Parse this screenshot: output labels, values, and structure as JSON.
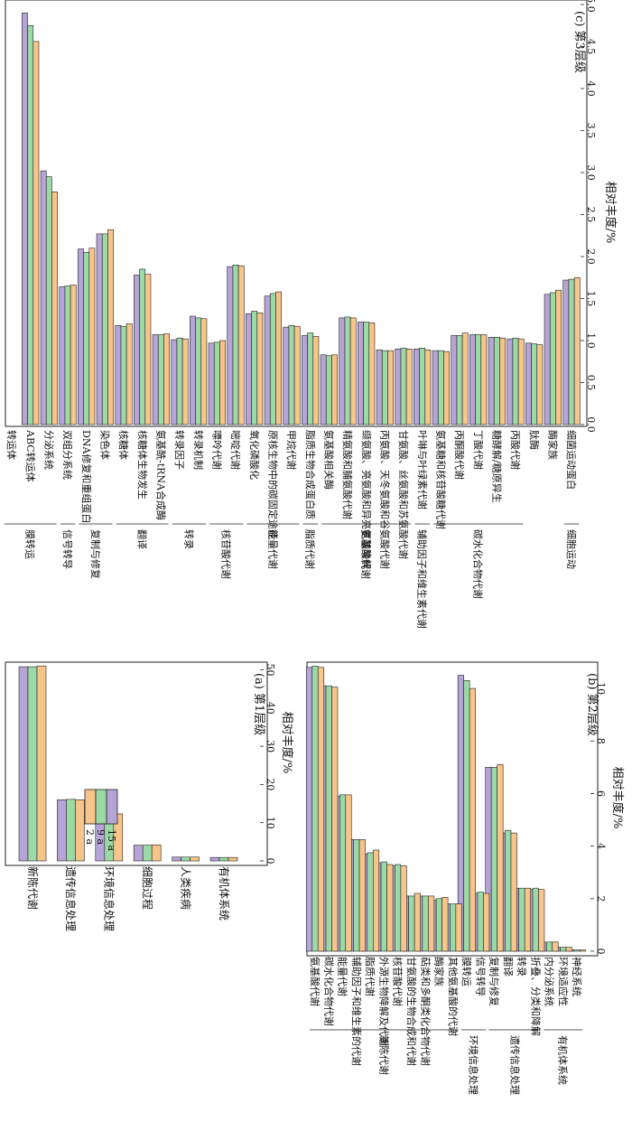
{
  "colors": {
    "y2": "#f7c489",
    "y9": "#9bd9a6",
    "y15": "#b7a4d6",
    "stroke": "#222222"
  },
  "chart_data": [
    {
      "id": "a",
      "type": "bar",
      "orientation": "horizontal",
      "title": "(a) 第1层级",
      "xlabel": "相对丰度/%",
      "xlim": [
        0,
        52
      ],
      "xticks": [
        0,
        10,
        20,
        30,
        40,
        50
      ],
      "legend": {
        "position": "top-right",
        "entries": [
          "2 a",
          "9 a",
          "15 a"
        ]
      },
      "categories": [
        "有机体系统",
        "人类疾病",
        "细胞过程",
        "环境信息处理",
        "遗传信息处理",
        "新陈代谢"
      ],
      "series": [
        {
          "name": "15 a",
          "values": [
            0.9,
            1.0,
            4.1,
            12.8,
            16.0,
            50.8
          ]
        },
        {
          "name": "9 a",
          "values": [
            0.9,
            1.0,
            4.1,
            12.6,
            16.1,
            50.8
          ]
        },
        {
          "name": "2 a",
          "values": [
            0.9,
            1.0,
            4.2,
            12.3,
            16.0,
            51.0
          ]
        }
      ]
    },
    {
      "id": "b",
      "type": "bar",
      "orientation": "horizontal",
      "title": "(b) 第2层级",
      "xlabel": "相对丰度/%",
      "xlim": [
        0,
        11
      ],
      "xticks": [
        0,
        2,
        4,
        6,
        8,
        10
      ],
      "categories": [
        "神经系统",
        "环境适应性",
        "内分泌系统",
        "折叠、分类和降解",
        "转录",
        "翻译",
        "复制与修复",
        "信号转导",
        "膜转运",
        "其他氨基酸的代谢",
        "酶家族",
        "萜类和多酮类化合物代谢",
        "甘氨酸的生物合成和代谢",
        "核苷酸代谢",
        "外源生物降解及代谢",
        "脂质代谢",
        "辅助因子和维生素的代谢",
        "能量代谢",
        "碳水化合物代谢",
        "氨基酸代谢"
      ],
      "groups": [
        {
          "label": "有机体系统",
          "from": 0,
          "to": 2
        },
        {
          "label": "遗传信息处理",
          "from": 3,
          "to": 6
        },
        {
          "label": "环境信息处理",
          "from": 7,
          "to": 8
        },
        {
          "label": "新陈代谢",
          "from": 9,
          "to": 19
        }
      ],
      "series": [
        {
          "name": "15 a",
          "values": [
            0.05,
            0.15,
            0.35,
            2.35,
            2.4,
            4.5,
            7.0,
            2.2,
            10.5,
            1.8,
            1.95,
            2.1,
            2.1,
            3.25,
            3.35,
            3.7,
            4.25,
            5.9,
            10.1,
            10.8
          ]
        },
        {
          "name": "9 a",
          "values": [
            0.05,
            0.15,
            0.35,
            2.4,
            2.4,
            4.6,
            7.0,
            2.25,
            10.3,
            1.8,
            2.0,
            2.1,
            2.1,
            3.3,
            3.4,
            3.75,
            4.25,
            5.95,
            10.1,
            10.85
          ]
        },
        {
          "name": "2 a",
          "values": [
            0.05,
            0.15,
            0.35,
            2.35,
            2.4,
            4.5,
            7.1,
            2.2,
            10.0,
            1.8,
            2.05,
            2.1,
            2.2,
            3.25,
            3.3,
            3.85,
            4.25,
            5.95,
            10.05,
            10.8
          ]
        }
      ]
    },
    {
      "id": "c",
      "type": "bar",
      "orientation": "horizontal",
      "title": "(c) 第3层级",
      "xlabel": "相对丰度/%",
      "xlim": [
        0,
        5.0
      ],
      "xticks": [
        0,
        0.5,
        1.0,
        1.5,
        2.0,
        2.5,
        3.0,
        3.5,
        4.0,
        4.5,
        5.0
      ],
      "categories": [
        "细菌运动蛋白",
        "酶家族",
        "肽酶",
        "丙酸代谢",
        "糖酵解/糖原异生",
        "丁酸代谢",
        "丙酮酸代谢",
        "氨基糖和核苷酸糖代谢",
        "叶啉与叶绿素代谢",
        "甘氨酸、丝氨酸和苏氨酸代谢",
        "丙氨酸、天冬氨酸和谷氨酸代谢",
        "缬氨酸、亮氨酸和异亮氨酸降解",
        "精氨酸和脯氨酸代谢",
        "氨基酸相关酶",
        "脂质生物合成蛋白质",
        "甲烷代谢",
        "原核生物中的碳固定途径",
        "氧化磷酸化",
        "嘧啶代谢",
        "嘌呤代谢",
        "转录机制",
        "转录因子",
        "氨基酰-tRNA合成酶",
        "核糖体生物发生",
        "核糖体",
        "染色体",
        "DNA修复和重组蛋白",
        "双组分系统",
        "分泌系统",
        "ABC转运体",
        "转运体"
      ],
      "groups": [
        {
          "label": "细胞运动",
          "from": 0,
          "to": 0
        },
        {
          "label": "碳水化合物代谢",
          "from": 3,
          "to": 7
        },
        {
          "label": "辅助因子和维生素代谢",
          "from": 8,
          "to": 8
        },
        {
          "label": "氨基酸代谢",
          "from": 9,
          "to": 13
        },
        {
          "label": "脂质代谢",
          "from": 14,
          "to": 14
        },
        {
          "label": "能量代谢",
          "from": 15,
          "to": 17
        },
        {
          "label": "核苷酸代谢",
          "from": 18,
          "to": 19
        },
        {
          "label": "转录",
          "from": 20,
          "to": 21
        },
        {
          "label": "翻译",
          "from": 22,
          "to": 24
        },
        {
          "label": "复制与修复",
          "from": 25,
          "to": 26
        },
        {
          "label": "信号转导",
          "from": 27,
          "to": 27
        },
        {
          "label": "膜转运",
          "from": 28,
          "to": 30
        }
      ],
      "series": [
        {
          "name": "15 a",
          "values": [
            1.72,
            1.55,
            0.97,
            1.02,
            1.04,
            1.07,
            1.06,
            0.88,
            0.9,
            0.9,
            0.89,
            1.22,
            1.27,
            0.83,
            1.06,
            1.16,
            1.53,
            1.32,
            1.88,
            0.97,
            1.29,
            1.01,
            1.07,
            1.78,
            1.18,
            2.27,
            2.09,
            1.64,
            3.02,
            4.9,
            0
          ]
        },
        {
          "name": "9 a",
          "values": [
            1.73,
            1.57,
            0.96,
            1.03,
            1.04,
            1.07,
            1.06,
            0.88,
            0.91,
            0.91,
            0.88,
            1.22,
            1.28,
            0.82,
            1.09,
            1.18,
            1.56,
            1.35,
            1.9,
            0.98,
            1.27,
            1.03,
            1.07,
            1.85,
            1.17,
            2.27,
            2.05,
            1.65,
            2.95,
            4.75,
            0
          ]
        },
        {
          "name": "2 a",
          "values": [
            1.75,
            1.6,
            0.95,
            1.02,
            1.03,
            1.07,
            1.09,
            0.87,
            0.89,
            0.9,
            0.88,
            1.21,
            1.27,
            0.83,
            1.05,
            1.17,
            1.58,
            1.33,
            1.89,
            1.0,
            1.26,
            1.02,
            1.08,
            1.79,
            1.2,
            2.32,
            2.1,
            1.66,
            2.77,
            4.56,
            0
          ]
        }
      ]
    }
  ]
}
